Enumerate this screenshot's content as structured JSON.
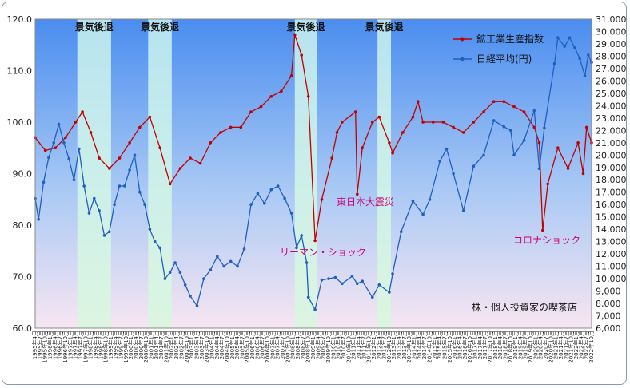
{
  "chart_data": {
    "type": "line",
    "left_axis": {
      "min": 60,
      "max": 120,
      "step": 10,
      "ticks": [
        "60.0",
        "70.0",
        "80.0",
        "90.0",
        "100.0",
        "110.0",
        "120.0"
      ]
    },
    "right_axis": {
      "min": 6000,
      "max": 31000,
      "step": 1000,
      "ticks": [
        "6,000",
        "7,000",
        "8,000",
        "9,000",
        "10,000",
        "11,000",
        "12,000",
        "13,000",
        "14,000",
        "15,000",
        "16,000",
        "17,000",
        "18,000",
        "19,000",
        "20,000",
        "21,000",
        "22,000",
        "23,000",
        "24,000",
        "25,000",
        "26,000",
        "27,000",
        "28,000",
        "29,000",
        "30,000",
        "31,000"
      ]
    },
    "x_start": "1995-04",
    "x_end": "2022-10",
    "x_tick_labels": [
      "1995年4月",
      "1995年7月",
      "1995年10月",
      "1996年1月",
      "1996年4月",
      "1996年7月",
      "1996年10月",
      "1997年1月",
      "1997年4月",
      "1997年7月",
      "1997年10月",
      "1998年1月",
      "1998年4月",
      "1998年7月",
      "1998年10月",
      "1999年1月",
      "1999年4月",
      "1999年7月",
      "1999年10月",
      "2000年1月",
      "2000年4月",
      "2000年7月",
      "2000年10月",
      "2001年1月",
      "2001年4月",
      "2001年7月",
      "2001年10月",
      "2002年1月",
      "2002年4月",
      "2002年7月",
      "2002年10月",
      "2003年1月",
      "2003年4月",
      "2003年7月",
      "2003年10月",
      "2004年1月",
      "2004年4月",
      "2004年7月",
      "2004年10月",
      "2005年1月",
      "2005年4月",
      "2005年7月",
      "2005年10月",
      "2006年1月",
      "2006年4月",
      "2006年7月",
      "2006年10月",
      "2007年1月",
      "2007年4月",
      "2007年7月",
      "2007年10月",
      "2008年1月",
      "2008年4月",
      "2008年7月",
      "2008年10月",
      "2009年1月",
      "2009年4月",
      "2009年7月",
      "2009年10月",
      "2010年1月",
      "2010年4月",
      "2010年7月",
      "2010年10月",
      "2011年1月",
      "2011年4月",
      "2011年7月",
      "2011年10月",
      "2012年1月",
      "2012年4月",
      "2012年7月",
      "2012年10月",
      "2013年1月",
      "2013年4月",
      "2013年7月",
      "2013年10月",
      "2014年1月",
      "2014年4月",
      "2014年7月",
      "2014年10月",
      "2015年1月",
      "2015年4月",
      "2015年7月",
      "2015年10月",
      "2016年1月",
      "2016年4月",
      "2016年7月",
      "2016年10月",
      "2017年1月",
      "2017年4月",
      "2017年7月",
      "2017年10月",
      "2018年1月",
      "2018年4月",
      "2018年7月",
      "2018年10月",
      "2019年1月",
      "2019年4月",
      "2019年7月",
      "2019年10月",
      "2020年1月",
      "2020年4月",
      "2020年7月",
      "2020年10月",
      "2021年1月",
      "2021年4月",
      "2021年7月",
      "2021年10月",
      "2022年1月",
      "2022年4月",
      "2022年7月",
      "2022年10月"
    ],
    "recessions": [
      {
        "label": "景気後退",
        "start": "1997-05",
        "end": "1999-01"
      },
      {
        "label": "景気後退",
        "start": "2000-11",
        "end": "2002-01"
      },
      {
        "label": "景気後退",
        "start": "2008-02",
        "end": "2009-03"
      },
      {
        "label": "景気後退",
        "start": "2012-03",
        "end": "2012-11"
      }
    ],
    "series": [
      {
        "name": "鉱工業生産指数",
        "axis": "left",
        "color": "#c00000",
        "points": [
          [
            "1995-04",
            97
          ],
          [
            "1995-10",
            94.5
          ],
          [
            "1996-04",
            95
          ],
          [
            "1996-10",
            97
          ],
          [
            "1997-04",
            100
          ],
          [
            "1997-08",
            102
          ],
          [
            "1998-01",
            98
          ],
          [
            "1998-06",
            93
          ],
          [
            "1998-12",
            91
          ],
          [
            "1999-06",
            93
          ],
          [
            "1999-12",
            96
          ],
          [
            "2000-06",
            99
          ],
          [
            "2000-12",
            101
          ],
          [
            "2001-06",
            95
          ],
          [
            "2001-12",
            88
          ],
          [
            "2002-06",
            91
          ],
          [
            "2002-12",
            93
          ],
          [
            "2003-06",
            92
          ],
          [
            "2003-12",
            96
          ],
          [
            "2004-06",
            98
          ],
          [
            "2004-12",
            99
          ],
          [
            "2005-06",
            99
          ],
          [
            "2005-12",
            102
          ],
          [
            "2006-06",
            103
          ],
          [
            "2006-12",
            105
          ],
          [
            "2007-06",
            106
          ],
          [
            "2007-12",
            109
          ],
          [
            "2008-02",
            117
          ],
          [
            "2008-06",
            113
          ],
          [
            "2008-10",
            105
          ],
          [
            "2009-02",
            77
          ],
          [
            "2009-06",
            85
          ],
          [
            "2009-12",
            93
          ],
          [
            "2010-03",
            98
          ],
          [
            "2010-06",
            100
          ],
          [
            "2011-02",
            102
          ],
          [
            "2011-03",
            86
          ],
          [
            "2011-06",
            95
          ],
          [
            "2011-12",
            100
          ],
          [
            "2012-04",
            101
          ],
          [
            "2012-10",
            96
          ],
          [
            "2012-12",
            94
          ],
          [
            "2013-06",
            98
          ],
          [
            "2013-12",
            101
          ],
          [
            "2014-03",
            104
          ],
          [
            "2014-06",
            100
          ],
          [
            "2014-12",
            100
          ],
          [
            "2015-06",
            100
          ],
          [
            "2015-12",
            99
          ],
          [
            "2016-06",
            98
          ],
          [
            "2016-12",
            100
          ],
          [
            "2017-06",
            102
          ],
          [
            "2017-12",
            104
          ],
          [
            "2018-06",
            104
          ],
          [
            "2018-12",
            103
          ],
          [
            "2019-06",
            102
          ],
          [
            "2019-12",
            99
          ],
          [
            "2020-03",
            96
          ],
          [
            "2020-05",
            79
          ],
          [
            "2020-08",
            88
          ],
          [
            "2021-02",
            95
          ],
          [
            "2021-08",
            91
          ],
          [
            "2022-02",
            96
          ],
          [
            "2022-05",
            90
          ],
          [
            "2022-07",
            99
          ],
          [
            "2022-10",
            96
          ]
        ]
      },
      {
        "name": "日経平均(円)",
        "axis": "right",
        "color": "#1f5fbf",
        "points": [
          [
            "1995-04",
            16500
          ],
          [
            "1995-06",
            14800
          ],
          [
            "1995-09",
            17800
          ],
          [
            "1995-12",
            19800
          ],
          [
            "1996-03",
            21000
          ],
          [
            "1996-06",
            22500
          ],
          [
            "1996-09",
            21000
          ],
          [
            "1996-12",
            19700
          ],
          [
            "1997-03",
            18000
          ],
          [
            "1997-06",
            20500
          ],
          [
            "1997-09",
            17500
          ],
          [
            "1997-12",
            15300
          ],
          [
            "1998-03",
            16500
          ],
          [
            "1998-06",
            15500
          ],
          [
            "1998-09",
            13500
          ],
          [
            "1998-12",
            13800
          ],
          [
            "1999-03",
            16000
          ],
          [
            "1999-06",
            17500
          ],
          [
            "1999-09",
            17500
          ],
          [
            "1999-12",
            18800
          ],
          [
            "2000-03",
            20000
          ],
          [
            "2000-06",
            17000
          ],
          [
            "2000-09",
            16000
          ],
          [
            "2000-12",
            14000
          ],
          [
            "2001-03",
            13000
          ],
          [
            "2001-06",
            12500
          ],
          [
            "2001-09",
            10000
          ],
          [
            "2001-12",
            10500
          ],
          [
            "2002-03",
            11300
          ],
          [
            "2002-06",
            10500
          ],
          [
            "2002-09",
            9500
          ],
          [
            "2002-12",
            8600
          ],
          [
            "2003-04",
            7800
          ],
          [
            "2003-08",
            10000
          ],
          [
            "2003-12",
            10700
          ],
          [
            "2004-04",
            11800
          ],
          [
            "2004-08",
            11000
          ],
          [
            "2004-12",
            11400
          ],
          [
            "2005-04",
            11000
          ],
          [
            "2005-08",
            12400
          ],
          [
            "2005-12",
            16000
          ],
          [
            "2006-04",
            16900
          ],
          [
            "2006-08",
            16100
          ],
          [
            "2006-12",
            17200
          ],
          [
            "2007-04",
            17500
          ],
          [
            "2007-08",
            16500
          ],
          [
            "2007-12",
            15300
          ],
          [
            "2008-03",
            12500
          ],
          [
            "2008-06",
            13500
          ],
          [
            "2008-09",
            11300
          ],
          [
            "2008-10",
            8500
          ],
          [
            "2009-02",
            7500
          ],
          [
            "2009-06",
            9900
          ],
          [
            "2009-10",
            10000
          ],
          [
            "2010-02",
            10100
          ],
          [
            "2010-06",
            9600
          ],
          [
            "2010-12",
            10200
          ],
          [
            "2011-03",
            9600
          ],
          [
            "2011-06",
            9800
          ],
          [
            "2011-12",
            8500
          ],
          [
            "2012-04",
            9500
          ],
          [
            "2012-10",
            8900
          ],
          [
            "2012-12",
            10400
          ],
          [
            "2013-05",
            13800
          ],
          [
            "2013-12",
            16300
          ],
          [
            "2014-06",
            15200
          ],
          [
            "2014-10",
            16400
          ],
          [
            "2015-04",
            19500
          ],
          [
            "2015-08",
            20500
          ],
          [
            "2015-12",
            18500
          ],
          [
            "2016-06",
            15500
          ],
          [
            "2016-12",
            19100
          ],
          [
            "2017-06",
            20000
          ],
          [
            "2017-12",
            22800
          ],
          [
            "2018-06",
            22300
          ],
          [
            "2018-10",
            22000
          ],
          [
            "2018-12",
            20000
          ],
          [
            "2019-06",
            21200
          ],
          [
            "2019-12",
            23600
          ],
          [
            "2020-03",
            18900
          ],
          [
            "2020-06",
            22200
          ],
          [
            "2020-12",
            27400
          ],
          [
            "2021-02",
            29500
          ],
          [
            "2021-06",
            28800
          ],
          [
            "2021-09",
            29500
          ],
          [
            "2021-12",
            28700
          ],
          [
            "2022-03",
            27800
          ],
          [
            "2022-06",
            26400
          ],
          [
            "2022-08",
            28100
          ],
          [
            "2022-10",
            27500
          ]
        ]
      }
    ],
    "annotations": [
      "東日本大震災",
      "リーマン・ショック",
      "コロナショック"
    ],
    "watermark": "株・個人投資家の喫茶店",
    "legend_position": "top-right",
    "grid": false
  }
}
